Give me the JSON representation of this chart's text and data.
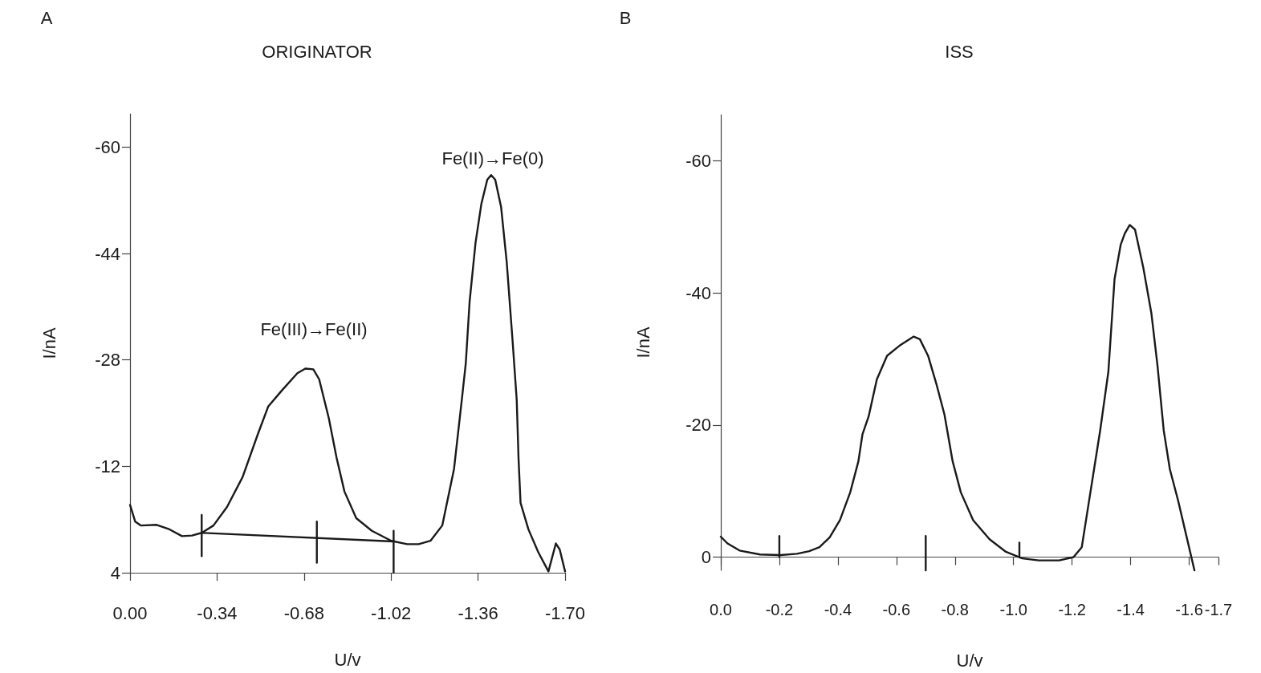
{
  "chart_data": [
    {
      "type": "line",
      "title": "ORIGINATOR",
      "xlabel": "U/v",
      "ylabel": "I/nA",
      "marker": "none",
      "annotations": [
        "A",
        "Fe(III)→Fe(II)",
        "Fe(II)→Fe(0)"
      ],
      "xlim": [
        0,
        -1.7
      ],
      "xticks": [
        {
          "value": 0,
          "label": "0.00"
        },
        -0.34,
        -0.68,
        -1.02,
        -1.36,
        {
          "value": -1.7,
          "label": "-1.70"
        }
      ],
      "ylim": [
        4,
        -65
      ],
      "yticks": [
        4,
        -12,
        -28,
        -44,
        -60
      ],
      "series": [
        {
          "color": "#1a1a1a",
          "x": [
            0,
            -0.02,
            -0.043,
            -0.104,
            -0.15,
            -0.203,
            -0.242,
            -0.28,
            -0.326,
            -0.379,
            -0.44,
            -0.5,
            -0.54,
            -0.593,
            -0.654,
            -0.685,
            -0.716,
            -0.739,
            -0.777,
            -0.807,
            -0.838,
            -0.884,
            -0.945,
            -1.021,
            -1.083,
            -1.128,
            -1.174,
            -1.22,
            -1.266,
            -1.297,
            -1.312,
            -1.327,
            -1.35,
            -1.373,
            -1.396,
            -1.411,
            -1.427,
            -1.45,
            -1.472,
            -1.495,
            -1.511,
            -1.518,
            -1.526,
            -1.557,
            -1.595,
            -1.635,
            -1.648,
            -1.664,
            -1.679,
            -1.7
          ],
          "values": [
            -6.2,
            -3.7,
            -3.1,
            -3.2,
            -2.6,
            -1.5,
            -1.6,
            -2.0,
            -3.1,
            -5.9,
            -10.4,
            -16.9,
            -21.0,
            -23.4,
            -26.0,
            -26.7,
            -26.6,
            -25.1,
            -19.2,
            -13.3,
            -8.2,
            -4.2,
            -2.3,
            -0.8,
            -0.3,
            -0.3,
            -0.8,
            -3.1,
            -11.6,
            -22.2,
            -27.5,
            -36.8,
            -45.6,
            -51.5,
            -55.1,
            -55.8,
            -55.1,
            -51.0,
            -42.7,
            -30.8,
            -22.0,
            -13.3,
            -6.5,
            -2.5,
            0.9,
            3.8,
            1.9,
            -0.4,
            0.5,
            3.8
          ]
        },
        {
          "color": "#1a1a1a",
          "x": [
            -0.28,
            -1.03
          ],
          "values": [
            -2.0,
            -0.7
          ]
        },
        {
          "color": "#1a1a1a",
          "x": [
            -0.28,
            -0.28
          ],
          "values": [
            -4.7,
            1.5
          ]
        },
        {
          "color": "#1a1a1a",
          "x": [
            -0.73,
            -0.73
          ],
          "values": [
            -3.7,
            2.5
          ]
        },
        {
          "color": "#1a1a1a",
          "x": [
            -1.03,
            -1.03
          ],
          "values": [
            -2.3,
            4.0
          ]
        }
      ]
    },
    {
      "type": "line",
      "title": "ISS",
      "xlabel": "U/v",
      "ylabel": "I/nA",
      "marker": "none",
      "annotations": [
        "B"
      ],
      "xlim": [
        0,
        -1.7
      ],
      "xticks": [
        {
          "value": 0,
          "label": "0.0"
        },
        -0.2,
        -0.4,
        -0.6,
        -0.8,
        {
          "value": -1,
          "label": "-1.0"
        },
        -1.2,
        -1.4,
        -1.6,
        -1.7
      ],
      "ylim": [
        2,
        -67
      ],
      "yticks": [
        0,
        -20,
        -40,
        -60
      ],
      "series": [
        {
          "color": "#1a1a1a",
          "x": [
            0,
            -0.022,
            -0.064,
            -0.134,
            -0.204,
            -0.26,
            -0.302,
            -0.337,
            -0.372,
            -0.407,
            -0.442,
            -0.47,
            -0.484,
            -0.505,
            -0.533,
            -0.568,
            -0.61,
            -0.659,
            -0.68,
            -0.708,
            -0.736,
            -0.764,
            -0.792,
            -0.82,
            -0.862,
            -0.918,
            -0.974,
            -1.03,
            -1.086,
            -1.156,
            -1.205,
            -1.233,
            -1.254,
            -1.296,
            -1.324,
            -1.345,
            -1.366,
            -1.38,
            -1.397,
            -1.415,
            -1.443,
            -1.471,
            -1.492,
            -1.513,
            -1.534,
            -1.562,
            -1.59,
            -1.618
          ],
          "values": [
            -3.1,
            -2.1,
            -1.0,
            -0.4,
            -0.3,
            -0.5,
            -0.9,
            -1.5,
            -3.0,
            -5.6,
            -9.8,
            -14.5,
            -18.6,
            -21.3,
            -26.9,
            -30.5,
            -32.0,
            -33.4,
            -33.0,
            -30.5,
            -26.3,
            -21.6,
            -14.5,
            -9.8,
            -5.6,
            -2.7,
            -0.8,
            0.2,
            0.5,
            0.5,
            0,
            -1.5,
            -7.4,
            -19.2,
            -28.1,
            -42.1,
            -47.3,
            -49.0,
            -50.3,
            -49.6,
            -43.9,
            -36.9,
            -28.9,
            -19.2,
            -13.3,
            -8.6,
            -3.3,
            2.0
          ]
        },
        {
          "color": "#1a1a1a",
          "x": [
            -0.2,
            -0.2
          ],
          "values": [
            -3.2,
            0
          ]
        },
        {
          "color": "#1a1a1a",
          "x": [
            -0.7,
            -0.7
          ],
          "values": [
            -3.2,
            2.0
          ]
        },
        {
          "color": "#1a1a1a",
          "x": [
            -1.02,
            -1.02
          ],
          "values": [
            -2.2,
            0
          ]
        }
      ]
    }
  ]
}
